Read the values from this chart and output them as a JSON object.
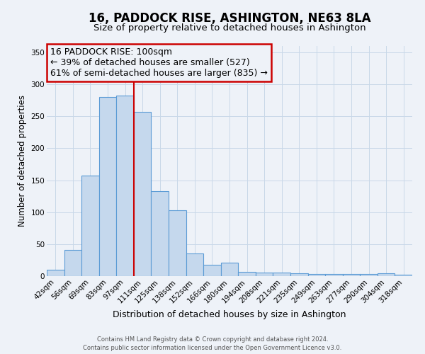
{
  "title": "16, PADDOCK RISE, ASHINGTON, NE63 8LA",
  "subtitle": "Size of property relative to detached houses in Ashington",
  "xlabel": "Distribution of detached houses by size in Ashington",
  "ylabel": "Number of detached properties",
  "bar_labels": [
    "42sqm",
    "56sqm",
    "69sqm",
    "83sqm",
    "97sqm",
    "111sqm",
    "125sqm",
    "138sqm",
    "152sqm",
    "166sqm",
    "180sqm",
    "194sqm",
    "208sqm",
    "221sqm",
    "235sqm",
    "249sqm",
    "263sqm",
    "277sqm",
    "290sqm",
    "304sqm",
    "318sqm"
  ],
  "bar_heights": [
    10,
    41,
    157,
    280,
    283,
    257,
    133,
    103,
    36,
    18,
    21,
    7,
    6,
    5,
    4,
    3,
    3,
    3,
    3,
    4,
    2
  ],
  "bar_color": "#c5d8ed",
  "bar_edge_color": "#5b9bd5",
  "grid_color": "#c8d8e8",
  "annotation_box_edge": "#cc0000",
  "annotation_line_color": "#cc0000",
  "annotation_text_line1": "16 PADDOCK RISE: 100sqm",
  "annotation_text_line2": "← 39% of detached houses are smaller (527)",
  "annotation_text_line3": "61% of semi-detached houses are larger (835) →",
  "vline_x": 4.5,
  "ylim": [
    0,
    360
  ],
  "yticks": [
    0,
    50,
    100,
    150,
    200,
    250,
    300,
    350
  ],
  "footer_line1": "Contains HM Land Registry data © Crown copyright and database right 2024.",
  "footer_line2": "Contains public sector information licensed under the Open Government Licence v3.0.",
  "bg_color": "#eef2f8",
  "title_fontsize": 12,
  "subtitle_fontsize": 9.5,
  "xlabel_fontsize": 9,
  "ylabel_fontsize": 8.5,
  "tick_fontsize": 7.5,
  "annotation_fontsize": 9
}
